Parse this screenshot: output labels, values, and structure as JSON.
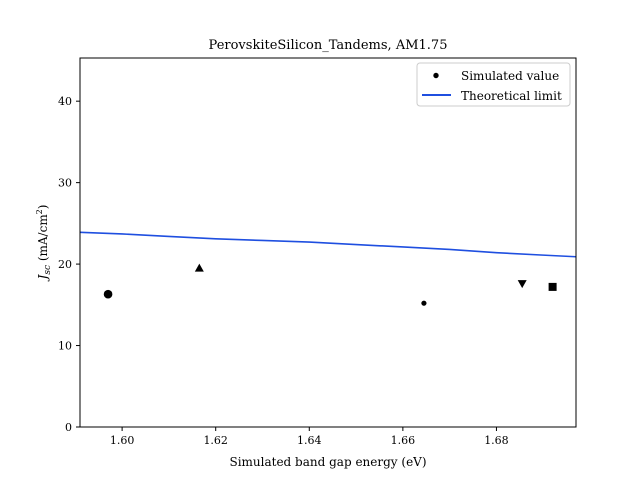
{
  "chart_data": {
    "type": "scatter",
    "title": "PerovskiteSilicon_Tandems, AM1.75",
    "xlabel": "Simulated band gap energy (eV)",
    "ylabel": "J_sc (mA/cm²)",
    "ylabel_parts": {
      "symbol": "J",
      "subscript": "sc",
      "unit_open": " (mA/cm",
      "unit_sup": "2",
      "unit_close": ")"
    },
    "xlim": [
      1.591,
      1.697
    ],
    "ylim": [
      0,
      45.3
    ],
    "xticks": [
      1.6,
      1.62,
      1.64,
      1.66,
      1.68
    ],
    "xtick_labels": [
      "1.60",
      "1.62",
      "1.64",
      "1.66",
      "1.68"
    ],
    "yticks": [
      0,
      10,
      20,
      30,
      40
    ],
    "ytick_labels": [
      "0",
      "10",
      "20",
      "30",
      "40"
    ],
    "grid": false,
    "legend_position": "top-right",
    "series": [
      {
        "name": "Simulated value",
        "kind": "scatter",
        "color": "#000000",
        "points": [
          {
            "x": 1.597,
            "y": 16.3,
            "marker": "circle-large"
          },
          {
            "x": 1.6165,
            "y": 19.5,
            "marker": "triangle-up"
          },
          {
            "x": 1.6645,
            "y": 15.2,
            "marker": "circle-small"
          },
          {
            "x": 1.6855,
            "y": 17.6,
            "marker": "triangle-down"
          },
          {
            "x": 1.692,
            "y": 17.2,
            "marker": "square"
          }
        ]
      },
      {
        "name": "Theoretical limit",
        "kind": "line",
        "color": "#1f4fe0",
        "x": [
          1.591,
          1.6,
          1.61,
          1.62,
          1.63,
          1.64,
          1.65,
          1.66,
          1.67,
          1.68,
          1.69,
          1.697
        ],
        "y": [
          23.9,
          23.7,
          23.4,
          23.1,
          22.9,
          22.7,
          22.4,
          22.1,
          21.8,
          21.4,
          21.1,
          20.9
        ]
      }
    ]
  }
}
